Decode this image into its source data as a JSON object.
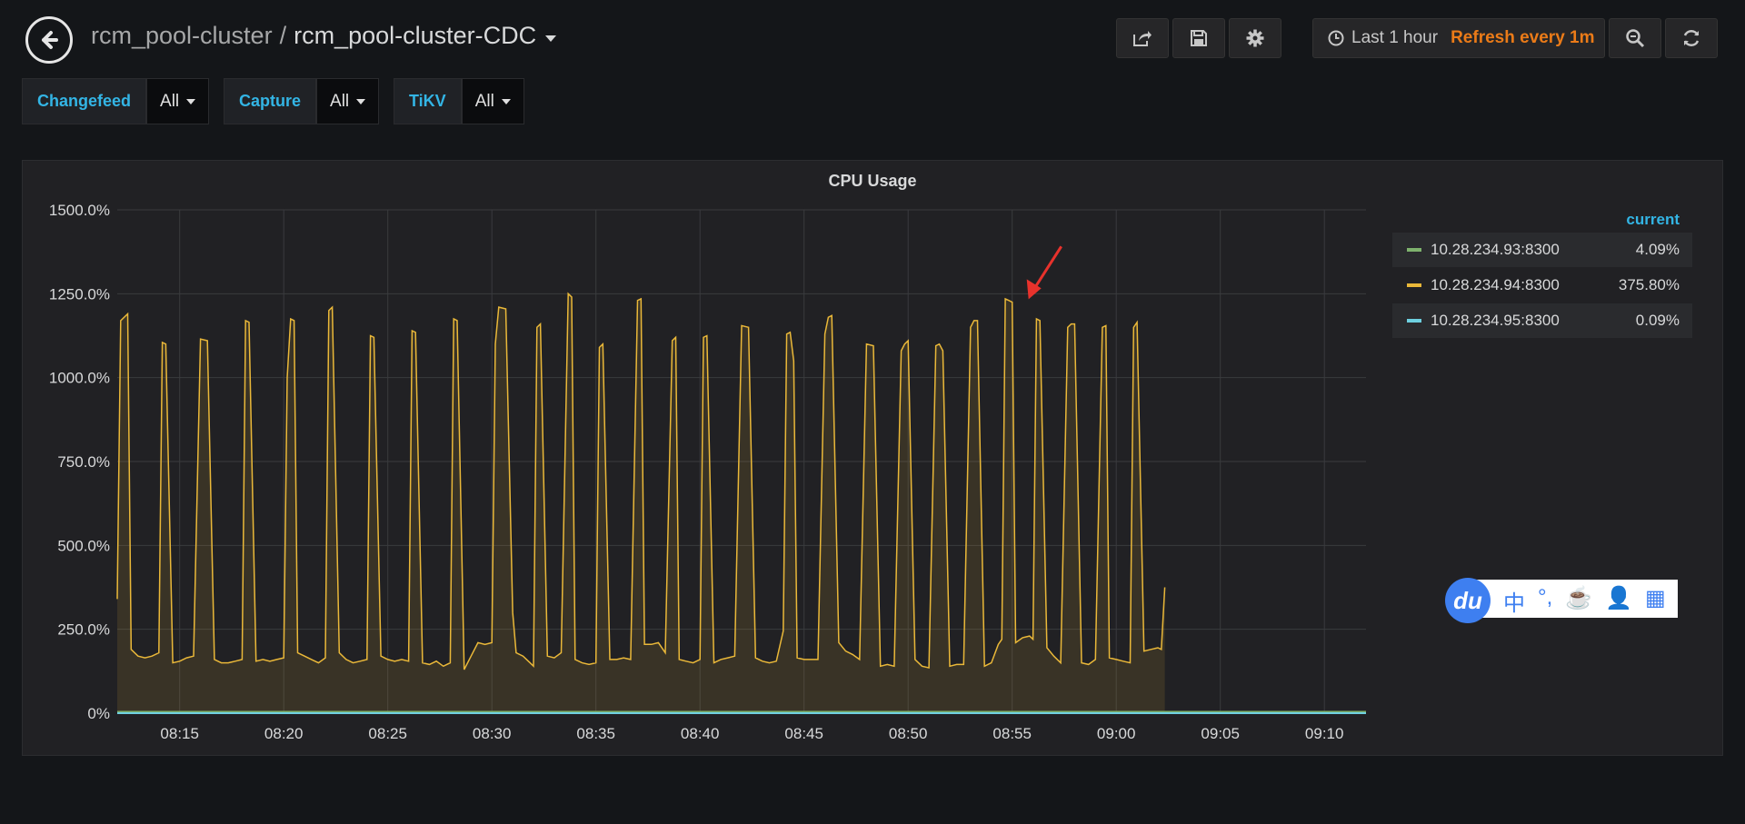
{
  "breadcrumb": {
    "parent": "rcm_pool-cluster",
    "separator": "/",
    "dashboard": "rcm_pool-cluster-CDC"
  },
  "nav_icons": [
    "share-icon",
    "save-icon",
    "gear-icon"
  ],
  "timepicker": {
    "range": "Last 1 hour",
    "refresh": "Refresh every 1m"
  },
  "variables": [
    {
      "label": "Changefeed",
      "value": "All"
    },
    {
      "label": "Capture",
      "value": "All"
    },
    {
      "label": "TiKV",
      "value": "All"
    }
  ],
  "panel": {
    "title": "CPU Usage"
  },
  "legend": {
    "column_header": "current",
    "items": [
      {
        "name": "10.28.234.93:8300",
        "current": "4.09%",
        "color": "#7eb26d"
      },
      {
        "name": "10.28.234.94:8300",
        "current": "375.80%",
        "color": "#eab839"
      },
      {
        "name": "10.28.234.95:8300",
        "current": "0.09%",
        "color": "#6ed0e0"
      }
    ]
  },
  "ime": {
    "logo": "du",
    "items": [
      "中",
      "°,",
      "☕",
      "👤",
      "▦"
    ]
  },
  "chart_data": {
    "type": "line",
    "title": "CPU Usage",
    "ylim": [
      0,
      1500
    ],
    "y_ticks": [
      "1500.0%",
      "1250.0%",
      "1000.0%",
      "750.0%",
      "500.0%",
      "250.0%",
      "0%"
    ],
    "y_tick_values": [
      1500,
      1250,
      1000,
      750,
      500,
      250,
      0
    ],
    "x_ticks": [
      "08:15",
      "08:20",
      "08:25",
      "08:30",
      "08:35",
      "08:40",
      "08:45",
      "08:50",
      "08:55",
      "09:00",
      "09:05",
      "09:10"
    ],
    "x_tick_values": [
      "08:15",
      "08:20",
      "08:25",
      "08:30",
      "08:35",
      "08:40",
      "08:45",
      "08:50",
      "08:55",
      "09:00",
      "09:05",
      "09:10"
    ],
    "xlim": [
      "08:12",
      "09:12"
    ],
    "grid": true,
    "legend_position": "right",
    "series": [
      {
        "name": "10.28.234.94:8300",
        "color": "#eab839",
        "fill": true,
        "points": [
          [
            "08:12:00",
            340
          ],
          [
            "08:12:10",
            1170
          ],
          [
            "08:12:30",
            1190
          ],
          [
            "08:12:40",
            190
          ],
          [
            "08:13:00",
            170
          ],
          [
            "08:13:20",
            165
          ],
          [
            "08:13:40",
            170
          ],
          [
            "08:14:00",
            180
          ],
          [
            "08:14:10",
            1105
          ],
          [
            "08:14:20",
            1100
          ],
          [
            "08:14:40",
            150
          ],
          [
            "08:15:00",
            155
          ],
          [
            "08:15:20",
            165
          ],
          [
            "08:15:40",
            170
          ],
          [
            "08:16:00",
            1115
          ],
          [
            "08:16:20",
            1110
          ],
          [
            "08:16:40",
            160
          ],
          [
            "08:17:00",
            150
          ],
          [
            "08:17:20",
            150
          ],
          [
            "08:17:40",
            155
          ],
          [
            "08:18:00",
            160
          ],
          [
            "08:18:10",
            1170
          ],
          [
            "08:18:20",
            1165
          ],
          [
            "08:18:40",
            155
          ],
          [
            "08:19:00",
            160
          ],
          [
            "08:19:20",
            155
          ],
          [
            "08:19:40",
            160
          ],
          [
            "08:20:00",
            165
          ],
          [
            "08:20:10",
            1000
          ],
          [
            "08:20:20",
            1175
          ],
          [
            "08:20:30",
            1170
          ],
          [
            "08:20:40",
            180
          ],
          [
            "08:21:00",
            170
          ],
          [
            "08:21:20",
            160
          ],
          [
            "08:21:40",
            150
          ],
          [
            "08:22:00",
            165
          ],
          [
            "08:22:10",
            1200
          ],
          [
            "08:22:20",
            1210
          ],
          [
            "08:22:40",
            180
          ],
          [
            "08:23:00",
            160
          ],
          [
            "08:23:20",
            150
          ],
          [
            "08:23:40",
            155
          ],
          [
            "08:24:00",
            160
          ],
          [
            "08:24:10",
            1125
          ],
          [
            "08:24:20",
            1120
          ],
          [
            "08:24:40",
            170
          ],
          [
            "08:25:00",
            160
          ],
          [
            "08:25:20",
            155
          ],
          [
            "08:25:40",
            160
          ],
          [
            "08:26:00",
            155
          ],
          [
            "08:26:10",
            1140
          ],
          [
            "08:26:20",
            1135
          ],
          [
            "08:26:40",
            150
          ],
          [
            "08:27:00",
            145
          ],
          [
            "08:27:20",
            155
          ],
          [
            "08:27:40",
            140
          ],
          [
            "08:28:00",
            150
          ],
          [
            "08:28:10",
            1175
          ],
          [
            "08:28:20",
            1170
          ],
          [
            "08:28:40",
            130
          ],
          [
            "08:29:00",
            170
          ],
          [
            "08:29:20",
            210
          ],
          [
            "08:29:40",
            205
          ],
          [
            "08:30:00",
            210
          ],
          [
            "08:30:10",
            1100
          ],
          [
            "08:30:20",
            1210
          ],
          [
            "08:30:40",
            1205
          ],
          [
            "08:31:00",
            300
          ],
          [
            "08:31:10",
            180
          ],
          [
            "08:31:30",
            170
          ],
          [
            "08:31:50",
            150
          ],
          [
            "08:32:00",
            140
          ],
          [
            "08:32:10",
            1150
          ],
          [
            "08:32:20",
            1160
          ],
          [
            "08:32:40",
            170
          ],
          [
            "08:33:00",
            165
          ],
          [
            "08:33:20",
            180
          ],
          [
            "08:33:40",
            1250
          ],
          [
            "08:33:50",
            1240
          ],
          [
            "08:34:00",
            160
          ],
          [
            "08:34:20",
            150
          ],
          [
            "08:34:40",
            145
          ],
          [
            "08:35:00",
            150
          ],
          [
            "08:35:10",
            1090
          ],
          [
            "08:35:20",
            1100
          ],
          [
            "08:35:40",
            160
          ],
          [
            "08:36:00",
            160
          ],
          [
            "08:36:20",
            165
          ],
          [
            "08:36:40",
            160
          ],
          [
            "08:37:00",
            1230
          ],
          [
            "08:37:10",
            1235
          ],
          [
            "08:37:20",
            205
          ],
          [
            "08:37:40",
            205
          ],
          [
            "08:38:00",
            210
          ],
          [
            "08:38:20",
            180
          ],
          [
            "08:38:40",
            1110
          ],
          [
            "08:38:50",
            1120
          ],
          [
            "08:39:00",
            160
          ],
          [
            "08:39:20",
            155
          ],
          [
            "08:39:40",
            150
          ],
          [
            "08:40:00",
            160
          ],
          [
            "08:40:10",
            1120
          ],
          [
            "08:40:20",
            1125
          ],
          [
            "08:40:40",
            150
          ],
          [
            "08:41:00",
            160
          ],
          [
            "08:41:20",
            165
          ],
          [
            "08:41:40",
            170
          ],
          [
            "08:42:00",
            1155
          ],
          [
            "08:42:20",
            1150
          ],
          [
            "08:42:40",
            165
          ],
          [
            "08:43:00",
            155
          ],
          [
            "08:43:20",
            150
          ],
          [
            "08:43:40",
            155
          ],
          [
            "08:44:00",
            245
          ],
          [
            "08:44:10",
            1130
          ],
          [
            "08:44:20",
            1135
          ],
          [
            "08:44:30",
            1050
          ],
          [
            "08:44:40",
            165
          ],
          [
            "08:45:00",
            160
          ],
          [
            "08:45:20",
            160
          ],
          [
            "08:45:40",
            160
          ],
          [
            "08:46:00",
            1130
          ],
          [
            "08:46:10",
            1180
          ],
          [
            "08:46:20",
            1185
          ],
          [
            "08:46:40",
            210
          ],
          [
            "08:47:00",
            185
          ],
          [
            "08:47:20",
            175
          ],
          [
            "08:47:40",
            160
          ],
          [
            "08:48:00",
            1100
          ],
          [
            "08:48:20",
            1095
          ],
          [
            "08:48:40",
            140
          ],
          [
            "08:49:00",
            145
          ],
          [
            "08:49:20",
            140
          ],
          [
            "08:49:40",
            1080
          ],
          [
            "08:49:50",
            1100
          ],
          [
            "08:50:00",
            1110
          ],
          [
            "08:50:20",
            160
          ],
          [
            "08:50:40",
            140
          ],
          [
            "08:51:00",
            135
          ],
          [
            "08:51:20",
            1095
          ],
          [
            "08:51:30",
            1100
          ],
          [
            "08:51:40",
            1080
          ],
          [
            "08:52:00",
            140
          ],
          [
            "08:52:20",
            145
          ],
          [
            "08:52:40",
            145
          ],
          [
            "08:53:00",
            1150
          ],
          [
            "08:53:10",
            1170
          ],
          [
            "08:53:20",
            1170
          ],
          [
            "08:53:40",
            140
          ],
          [
            "08:54:00",
            150
          ],
          [
            "08:54:20",
            205
          ],
          [
            "08:54:30",
            220
          ],
          [
            "08:54:40",
            1235
          ],
          [
            "08:54:50",
            1230
          ],
          [
            "08:55:00",
            1225
          ],
          [
            "08:55:10",
            210
          ],
          [
            "08:55:30",
            225
          ],
          [
            "08:55:50",
            230
          ],
          [
            "08:56:00",
            220
          ],
          [
            "08:56:10",
            1175
          ],
          [
            "08:56:20",
            1170
          ],
          [
            "08:56:40",
            195
          ],
          [
            "08:57:00",
            170
          ],
          [
            "08:57:20",
            150
          ],
          [
            "08:57:40",
            1150
          ],
          [
            "08:57:50",
            1160
          ],
          [
            "08:58:00",
            1160
          ],
          [
            "08:58:20",
            150
          ],
          [
            "08:58:40",
            145
          ],
          [
            "08:59:00",
            160
          ],
          [
            "08:59:20",
            1150
          ],
          [
            "08:59:30",
            1155
          ],
          [
            "08:59:40",
            165
          ],
          [
            "09:00:00",
            160
          ],
          [
            "09:00:20",
            155
          ],
          [
            "09:00:40",
            150
          ],
          [
            "09:00:50",
            1150
          ],
          [
            "09:01:00",
            1165
          ],
          [
            "09:01:20",
            185
          ],
          [
            "09:01:40",
            190
          ],
          [
            "09:02:00",
            195
          ],
          [
            "09:02:10",
            190
          ],
          [
            "09:02:20",
            375
          ]
        ]
      },
      {
        "name": "10.28.234.93:8300",
        "color": "#7eb26d",
        "fill": false,
        "constant": 4
      },
      {
        "name": "10.28.234.95:8300",
        "color": "#6ed0e0",
        "fill": false,
        "constant": 0.1
      }
    ]
  }
}
